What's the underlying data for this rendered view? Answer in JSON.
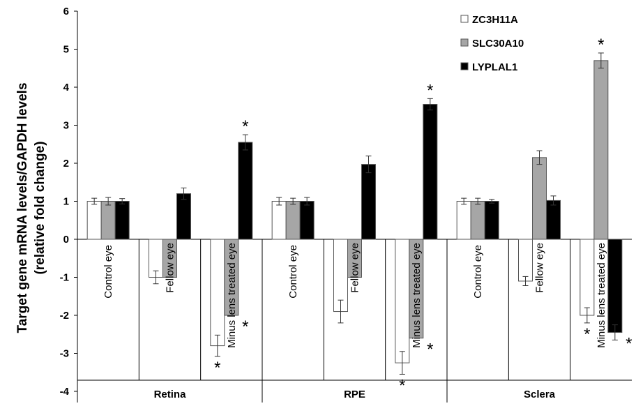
{
  "chart_data": {
    "type": "bar",
    "ylabel": "Target gene mRNA levels/GAPDH levels",
    "ylabel2": "(relative fold change)",
    "ylim": [
      -4,
      6
    ],
    "yticks": [
      6,
      5,
      4,
      3,
      2,
      1,
      0,
      -1,
      -2,
      -3,
      -4
    ],
    "grid": false,
    "legend_position": "top-right",
    "tissues": [
      "Retina",
      "RPE",
      "Sclera"
    ],
    "conditions": [
      "Control eye",
      "Fellow eye",
      "Minus lens treated eye"
    ],
    "categories": [
      "Retina / Control eye",
      "Retina / Fellow eye",
      "Retina / Minus lens treated eye",
      "RPE / Control eye",
      "RPE / Fellow eye",
      "RPE / Minus lens treated eye",
      "Sclera / Control eye",
      "Sclera / Fellow eye",
      "Sclera / Minus lens treated eye"
    ],
    "series": [
      {
        "name": "ZC3H11A",
        "color": "#ffffff",
        "values": [
          1.0,
          -1.0,
          -2.8,
          1.0,
          -1.9,
          -3.25,
          1.0,
          -1.1,
          -2.0
        ],
        "errors": [
          0.08,
          0.17,
          0.28,
          0.1,
          0.3,
          0.3,
          0.08,
          0.12,
          0.2
        ],
        "significant": [
          false,
          false,
          true,
          false,
          false,
          true,
          false,
          false,
          true
        ]
      },
      {
        "name": "SLC30A10",
        "color": "#a6a6a6",
        "values": [
          1.0,
          -1.0,
          -2.0,
          1.0,
          -1.0,
          -2.6,
          1.0,
          2.15,
          4.7
        ],
        "errors": [
          0.1,
          0.0,
          0.0,
          0.08,
          0.0,
          0.0,
          0.08,
          0.18,
          0.2
        ],
        "significant": [
          false,
          false,
          true,
          false,
          false,
          true,
          false,
          false,
          true
        ]
      },
      {
        "name": "LYPLAL1",
        "color": "#000000",
        "values": [
          1.0,
          1.2,
          2.55,
          1.0,
          1.97,
          3.55,
          1.0,
          1.02,
          -2.45
        ],
        "errors": [
          0.07,
          0.15,
          0.2,
          0.1,
          0.22,
          0.15,
          0.05,
          0.12,
          0.2
        ],
        "significant": [
          false,
          false,
          true,
          false,
          false,
          true,
          false,
          false,
          true
        ]
      }
    ],
    "significance_marker": "*"
  }
}
